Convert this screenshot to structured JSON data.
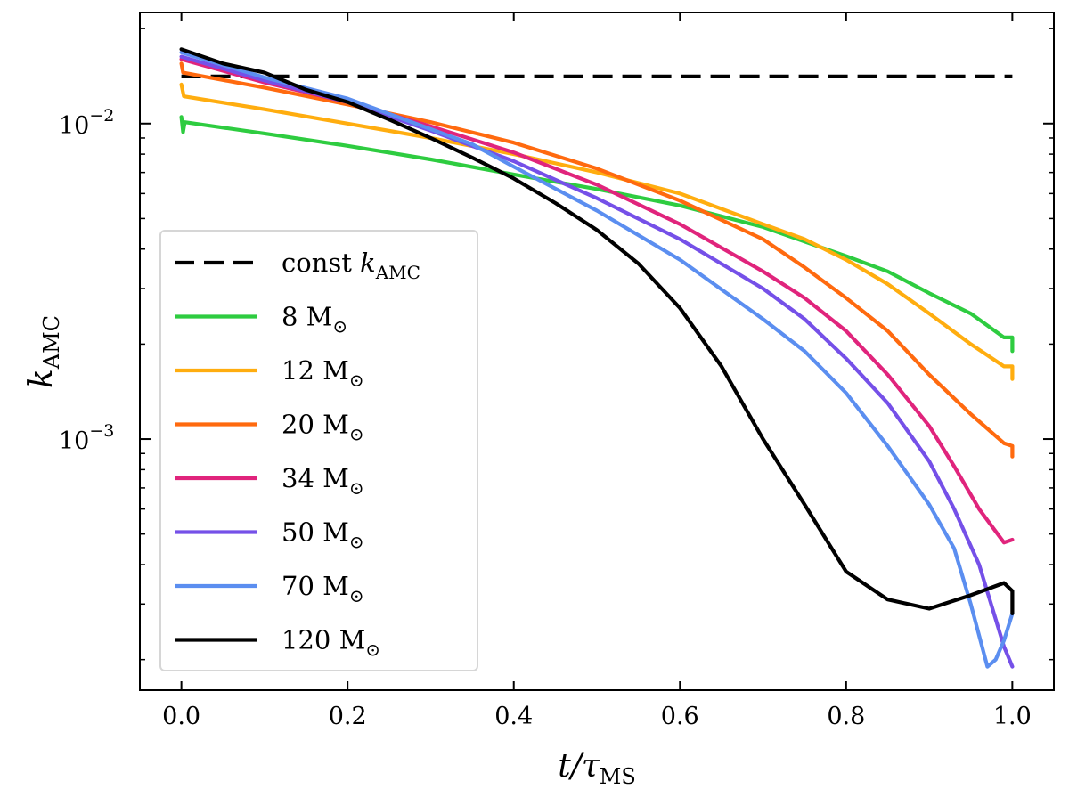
{
  "chart_data": {
    "type": "line",
    "title": "",
    "xlabel": "t/τ_MS",
    "xlabel_main": "t/τ",
    "xlabel_sub": "MS",
    "ylabel": "k_AMC",
    "ylabel_main": "k",
    "ylabel_sub": "AMC",
    "xscale": "linear",
    "yscale": "log",
    "xlim": [
      -0.05,
      1.05
    ],
    "ylim": [
      0.00016,
      0.0225
    ],
    "xticks": [
      0.0,
      0.2,
      0.4,
      0.6,
      0.8,
      1.0
    ],
    "xtick_labels": [
      "0.0",
      "0.2",
      "0.4",
      "0.6",
      "0.8",
      "1.0"
    ],
    "yticks": [
      {
        "value": 0.01,
        "base": "10",
        "exp": "−2"
      },
      {
        "value": 0.001,
        "base": "10",
        "exp": "−3"
      }
    ],
    "legend_position": "lower-left",
    "series": [
      {
        "name": "const k_AMC",
        "label_main": "const ",
        "label_italic": "k",
        "label_sub": "AMC",
        "color": "#000000",
        "dash": true,
        "x": [
          0.0,
          1.0
        ],
        "y": [
          0.0141,
          0.0141
        ]
      },
      {
        "name": "8 M_⊙",
        "label_main": "8 M",
        "label_sub": "⊙",
        "color": "#2ecc40",
        "dash": false,
        "x": [
          0.0,
          0.002,
          0.004,
          0.1,
          0.2,
          0.3,
          0.4,
          0.5,
          0.6,
          0.7,
          0.8,
          0.85,
          0.9,
          0.95,
          0.99,
          1.0,
          1.0
        ],
        "y": [
          0.0105,
          0.0094,
          0.0101,
          0.0093,
          0.0085,
          0.0077,
          0.0069,
          0.0062,
          0.0055,
          0.0047,
          0.0038,
          0.0034,
          0.0029,
          0.0025,
          0.0021,
          0.0021,
          0.0019
        ]
      },
      {
        "name": "12 M_⊙",
        "label_main": "12 M",
        "label_sub": "⊙",
        "color": "#ffad0f",
        "dash": false,
        "x": [
          0.0,
          0.003,
          0.1,
          0.2,
          0.3,
          0.4,
          0.5,
          0.6,
          0.7,
          0.75,
          0.8,
          0.85,
          0.9,
          0.95,
          0.99,
          1.0,
          1.0
        ],
        "y": [
          0.0133,
          0.0122,
          0.0111,
          0.01,
          0.009,
          0.008,
          0.007,
          0.006,
          0.0048,
          0.0043,
          0.0037,
          0.0031,
          0.0025,
          0.002,
          0.0017,
          0.0017,
          0.00155
        ]
      },
      {
        "name": "20 M_⊙",
        "label_main": "20 M",
        "label_sub": "⊙",
        "color": "#ff6a0f",
        "dash": false,
        "x": [
          0.0,
          0.002,
          0.1,
          0.2,
          0.3,
          0.4,
          0.5,
          0.6,
          0.7,
          0.75,
          0.8,
          0.85,
          0.9,
          0.95,
          0.99,
          1.0,
          1.0
        ],
        "y": [
          0.0155,
          0.0145,
          0.013,
          0.0115,
          0.0101,
          0.0087,
          0.0072,
          0.0057,
          0.0043,
          0.0035,
          0.0028,
          0.0022,
          0.0016,
          0.0012,
          0.00097,
          0.00095,
          0.00088
        ]
      },
      {
        "name": "34 M_⊙",
        "label_main": "34 M",
        "label_sub": "⊙",
        "color": "#e0247c",
        "dash": false,
        "x": [
          0.0,
          0.1,
          0.2,
          0.3,
          0.4,
          0.5,
          0.6,
          0.7,
          0.75,
          0.8,
          0.85,
          0.9,
          0.93,
          0.96,
          0.99,
          1.0
        ],
        "y": [
          0.016,
          0.0135,
          0.0117,
          0.0098,
          0.0081,
          0.0064,
          0.0048,
          0.0034,
          0.0028,
          0.0022,
          0.0016,
          0.0011,
          0.00082,
          0.0006,
          0.00047,
          0.00048
        ]
      },
      {
        "name": "50 M_⊙",
        "label_main": "50 M",
        "label_sub": "⊙",
        "color": "#7550e8",
        "dash": false,
        "x": [
          0.0,
          0.1,
          0.2,
          0.3,
          0.4,
          0.5,
          0.6,
          0.7,
          0.75,
          0.8,
          0.85,
          0.9,
          0.93,
          0.96,
          0.99,
          1.0
        ],
        "y": [
          0.0163,
          0.0137,
          0.0117,
          0.0095,
          0.0076,
          0.0058,
          0.0043,
          0.003,
          0.0024,
          0.0018,
          0.0013,
          0.00085,
          0.0006,
          0.0004,
          0.00022,
          0.00019
        ]
      },
      {
        "name": "70 M_⊙",
        "label_main": "70 M",
        "label_sub": "⊙",
        "color": "#5b8ef0",
        "dash": false,
        "x": [
          0.0,
          0.1,
          0.2,
          0.3,
          0.35,
          0.4,
          0.5,
          0.6,
          0.7,
          0.75,
          0.8,
          0.85,
          0.9,
          0.93,
          0.95,
          0.97,
          0.98,
          0.99,
          1.0
        ],
        "y": [
          0.0168,
          0.014,
          0.012,
          0.0096,
          0.0086,
          0.0073,
          0.0053,
          0.0037,
          0.0024,
          0.0019,
          0.0014,
          0.00095,
          0.00062,
          0.00045,
          0.0003,
          0.00019,
          0.0002,
          0.00023,
          0.00028
        ]
      },
      {
        "name": "120 M_⊙",
        "label_main": "120 M",
        "label_sub": "⊙",
        "color": "#000000",
        "dash": false,
        "x": [
          0.0,
          0.05,
          0.1,
          0.15,
          0.2,
          0.25,
          0.3,
          0.35,
          0.4,
          0.45,
          0.5,
          0.55,
          0.6,
          0.65,
          0.7,
          0.75,
          0.8,
          0.85,
          0.9,
          0.95,
          0.99,
          1.0,
          1.0
        ],
        "y": [
          0.0172,
          0.0155,
          0.0145,
          0.0128,
          0.0117,
          0.0103,
          0.009,
          0.0078,
          0.0067,
          0.0056,
          0.0046,
          0.0036,
          0.0026,
          0.0017,
          0.001,
          0.00062,
          0.00038,
          0.00031,
          0.00029,
          0.00032,
          0.00035,
          0.00033,
          0.00028
        ]
      }
    ]
  }
}
